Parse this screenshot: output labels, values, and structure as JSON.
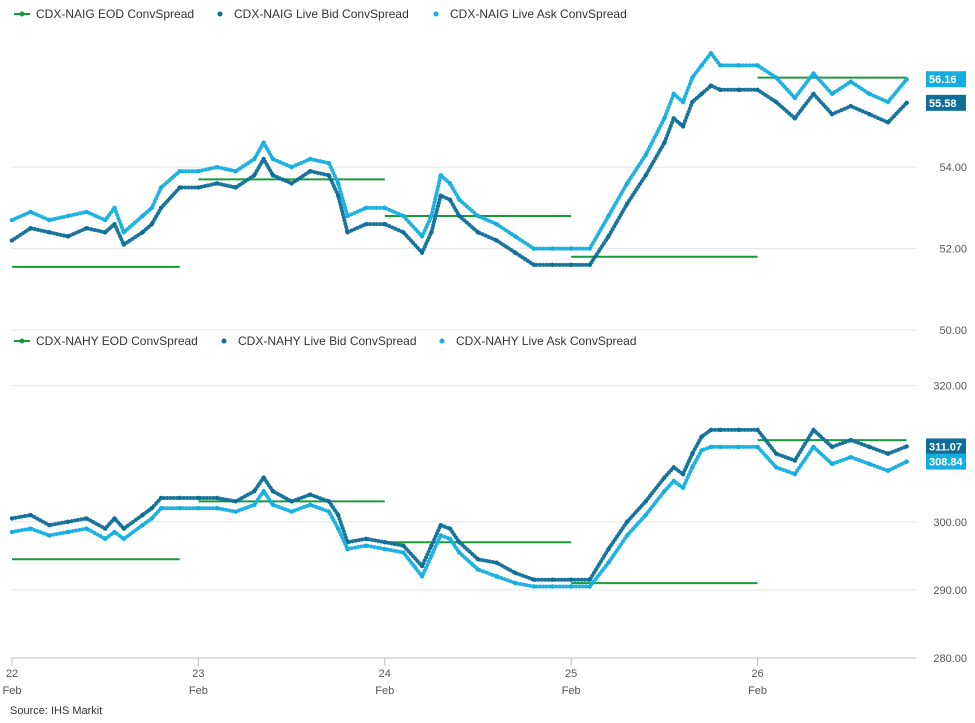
{
  "source": "Source: IHS Markit",
  "colors": {
    "eod": "#1a9b3a",
    "bid": "#0e6e98",
    "ask": "#14aee0",
    "grid": "#e6e6e6",
    "axis": "#bfbfbf"
  },
  "x_axis": {
    "ticks": [
      {
        "x": 22,
        "day": "22",
        "month": "Feb"
      },
      {
        "x": 23,
        "day": "23",
        "month": "Feb"
      },
      {
        "x": 24,
        "day": "24",
        "month": "Feb"
      },
      {
        "x": 25,
        "day": "25",
        "month": "Feb"
      },
      {
        "x": 26,
        "day": "26",
        "month": "Feb"
      }
    ]
  },
  "chart_data": [
    {
      "type": "line",
      "legend": [
        {
          "name": "CDX-NAIG EOD ConvSpread",
          "color": "#1a9b3a",
          "marker": "line"
        },
        {
          "name": "CDX-NAIG Live Bid ConvSpread",
          "color": "#0e6e98",
          "marker": "dot"
        },
        {
          "name": "CDX-NAIG Live Ask ConvSpread",
          "color": "#14aee0",
          "marker": "dot"
        }
      ],
      "ylim": [
        50,
        57
      ],
      "yticks": [
        "50.00",
        "52.00",
        "54.00"
      ],
      "eod_segments": [
        {
          "x": [
            22.0,
            22.9
          ],
          "y": 51.55
        },
        {
          "x": [
            23.0,
            24.0
          ],
          "y": 53.7
        },
        {
          "x": [
            24.0,
            25.0
          ],
          "y": 52.8
        },
        {
          "x": [
            25.0,
            26.0
          ],
          "y": 51.8
        },
        {
          "x": [
            26.0,
            26.8
          ],
          "y": 56.2
        }
      ],
      "series": [
        {
          "name": "CDX-NAIG Live Bid ConvSpread",
          "color": "#0e6e98",
          "x": [
            22.0,
            22.1,
            22.2,
            22.3,
            22.4,
            22.5,
            22.55,
            22.6,
            22.7,
            22.75,
            22.8,
            22.9,
            23.0,
            23.1,
            23.2,
            23.3,
            23.35,
            23.4,
            23.5,
            23.6,
            23.7,
            23.75,
            23.8,
            23.9,
            24.0,
            24.1,
            24.2,
            24.25,
            24.3,
            24.35,
            24.4,
            24.5,
            24.6,
            24.7,
            24.8,
            24.9,
            25.0,
            25.1,
            25.2,
            25.3,
            25.4,
            25.5,
            25.55,
            25.6,
            25.65,
            25.7,
            25.75,
            25.8,
            25.9,
            26.0,
            26.1,
            26.2,
            26.3,
            26.4,
            26.5,
            26.6,
            26.7,
            26.8
          ],
          "y": [
            52.2,
            52.5,
            52.4,
            52.3,
            52.5,
            52.4,
            52.6,
            52.1,
            52.4,
            52.6,
            53.0,
            53.5,
            53.5,
            53.6,
            53.5,
            53.8,
            54.2,
            53.8,
            53.6,
            53.9,
            53.8,
            53.3,
            52.4,
            52.6,
            52.6,
            52.4,
            51.9,
            52.4,
            53.3,
            53.2,
            52.8,
            52.4,
            52.2,
            51.9,
            51.6,
            51.6,
            51.6,
            51.6,
            52.3,
            53.1,
            53.8,
            54.6,
            55.2,
            55.0,
            55.6,
            55.8,
            56.0,
            55.9,
            55.9,
            55.9,
            55.6,
            55.2,
            55.8,
            55.3,
            55.5,
            55.3,
            55.1,
            55.58
          ]
        },
        {
          "name": "CDX-NAIG Live Ask ConvSpread",
          "color": "#14aee0",
          "x": [
            22.0,
            22.1,
            22.2,
            22.3,
            22.4,
            22.5,
            22.55,
            22.6,
            22.7,
            22.75,
            22.8,
            22.9,
            23.0,
            23.1,
            23.2,
            23.3,
            23.35,
            23.4,
            23.5,
            23.6,
            23.7,
            23.75,
            23.8,
            23.9,
            24.0,
            24.1,
            24.2,
            24.25,
            24.3,
            24.35,
            24.4,
            24.5,
            24.6,
            24.7,
            24.8,
            24.9,
            25.0,
            25.1,
            25.2,
            25.3,
            25.4,
            25.5,
            25.55,
            25.6,
            25.65,
            25.7,
            25.75,
            25.8,
            25.9,
            26.0,
            26.1,
            26.2,
            26.3,
            26.4,
            26.5,
            26.6,
            26.7,
            26.8
          ],
          "y": [
            52.7,
            52.9,
            52.7,
            52.8,
            52.9,
            52.7,
            53.0,
            52.4,
            52.8,
            53.0,
            53.5,
            53.9,
            53.9,
            54.0,
            53.9,
            54.2,
            54.6,
            54.2,
            54.0,
            54.2,
            54.1,
            53.6,
            52.8,
            53.0,
            53.0,
            52.8,
            52.3,
            52.8,
            53.8,
            53.6,
            53.2,
            52.8,
            52.6,
            52.3,
            52.0,
            52.0,
            52.0,
            52.0,
            52.8,
            53.6,
            54.3,
            55.2,
            55.8,
            55.6,
            56.2,
            56.5,
            56.8,
            56.5,
            56.5,
            56.5,
            56.2,
            55.7,
            56.3,
            55.8,
            56.1,
            55.8,
            55.6,
            56.16
          ]
        }
      ],
      "last_values": [
        {
          "label": "56.16",
          "value": 56.16,
          "color": "#14aee0"
        },
        {
          "label": "55.58",
          "value": 55.58,
          "color": "#0e6e98"
        }
      ]
    },
    {
      "type": "line",
      "legend": [
        {
          "name": "CDX-NAHY EOD ConvSpread",
          "color": "#1a9b3a",
          "marker": "line"
        },
        {
          "name": "CDX-NAHY Live Bid ConvSpread",
          "color": "#0e6e98",
          "marker": "dot"
        },
        {
          "name": "CDX-NAHY Live Ask ConvSpread",
          "color": "#14aee0",
          "marker": "dot"
        }
      ],
      "ylim": [
        280,
        322
      ],
      "yticks": [
        "280.00",
        "290.00",
        "300.00",
        "320.00"
      ],
      "eod_segments": [
        {
          "x": [
            22.0,
            22.9
          ],
          "y": 294.5
        },
        {
          "x": [
            23.0,
            24.0
          ],
          "y": 303.0
        },
        {
          "x": [
            24.0,
            25.0
          ],
          "y": 297.0
        },
        {
          "x": [
            25.0,
            26.0
          ],
          "y": 291.0
        },
        {
          "x": [
            26.0,
            26.8
          ],
          "y": 312.0
        }
      ],
      "series": [
        {
          "name": "CDX-NAHY Live Bid ConvSpread",
          "color": "#0e6e98",
          "x": [
            22.0,
            22.1,
            22.2,
            22.3,
            22.4,
            22.5,
            22.55,
            22.6,
            22.7,
            22.75,
            22.8,
            22.9,
            23.0,
            23.1,
            23.2,
            23.3,
            23.35,
            23.4,
            23.5,
            23.6,
            23.7,
            23.75,
            23.8,
            23.9,
            24.0,
            24.1,
            24.2,
            24.25,
            24.3,
            24.35,
            24.4,
            24.5,
            24.6,
            24.7,
            24.8,
            24.9,
            25.0,
            25.1,
            25.2,
            25.3,
            25.4,
            25.5,
            25.55,
            25.6,
            25.65,
            25.7,
            25.75,
            25.8,
            25.9,
            26.0,
            26.1,
            26.2,
            26.3,
            26.4,
            26.5,
            26.6,
            26.7,
            26.8
          ],
          "y": [
            300.5,
            301.0,
            299.5,
            300.0,
            300.5,
            299.0,
            300.5,
            299.0,
            301.0,
            302.0,
            303.5,
            303.5,
            303.5,
            303.5,
            303.0,
            304.5,
            306.5,
            304.5,
            303.0,
            304.0,
            303.0,
            301.0,
            297.0,
            297.5,
            297.0,
            296.5,
            293.5,
            296.5,
            299.5,
            299.0,
            297.0,
            294.5,
            294.0,
            292.5,
            291.5,
            291.5,
            291.5,
            291.5,
            296.0,
            300.0,
            303.0,
            306.5,
            308.0,
            307.0,
            310.0,
            312.5,
            313.5,
            313.5,
            313.5,
            313.5,
            310.0,
            309.0,
            313.5,
            311.0,
            312.0,
            311.0,
            310.0,
            311.07
          ]
        },
        {
          "name": "CDX-NAHY Live Ask ConvSpread",
          "color": "#14aee0",
          "x": [
            22.0,
            22.1,
            22.2,
            22.3,
            22.4,
            22.5,
            22.55,
            22.6,
            22.7,
            22.75,
            22.8,
            22.9,
            23.0,
            23.1,
            23.2,
            23.3,
            23.35,
            23.4,
            23.5,
            23.6,
            23.7,
            23.75,
            23.8,
            23.9,
            24.0,
            24.1,
            24.2,
            24.25,
            24.3,
            24.35,
            24.4,
            24.5,
            24.6,
            24.7,
            24.8,
            24.9,
            25.0,
            25.1,
            25.2,
            25.3,
            25.4,
            25.5,
            25.55,
            25.6,
            25.65,
            25.7,
            25.75,
            25.8,
            25.9,
            26.0,
            26.1,
            26.2,
            26.3,
            26.4,
            26.5,
            26.6,
            26.7,
            26.8
          ],
          "y": [
            298.5,
            299.0,
            298.0,
            298.5,
            299.0,
            297.5,
            298.5,
            297.5,
            299.5,
            300.5,
            302.0,
            302.0,
            302.0,
            302.0,
            301.5,
            302.5,
            304.5,
            302.5,
            301.5,
            302.5,
            301.5,
            299.0,
            296.0,
            296.5,
            296.0,
            295.5,
            292.0,
            295.0,
            298.0,
            297.5,
            295.5,
            293.0,
            292.0,
            291.0,
            290.5,
            290.5,
            290.5,
            290.5,
            294.0,
            298.0,
            301.0,
            304.5,
            306.0,
            305.0,
            308.0,
            310.5,
            311.0,
            311.0,
            311.0,
            311.0,
            308.0,
            307.0,
            311.0,
            308.5,
            309.5,
            308.5,
            307.5,
            308.84
          ]
        }
      ],
      "last_values": [
        {
          "label": "311.07",
          "value": 311.07,
          "color": "#0e6e98"
        },
        {
          "label": "308.84",
          "value": 308.84,
          "color": "#14aee0"
        }
      ]
    }
  ]
}
